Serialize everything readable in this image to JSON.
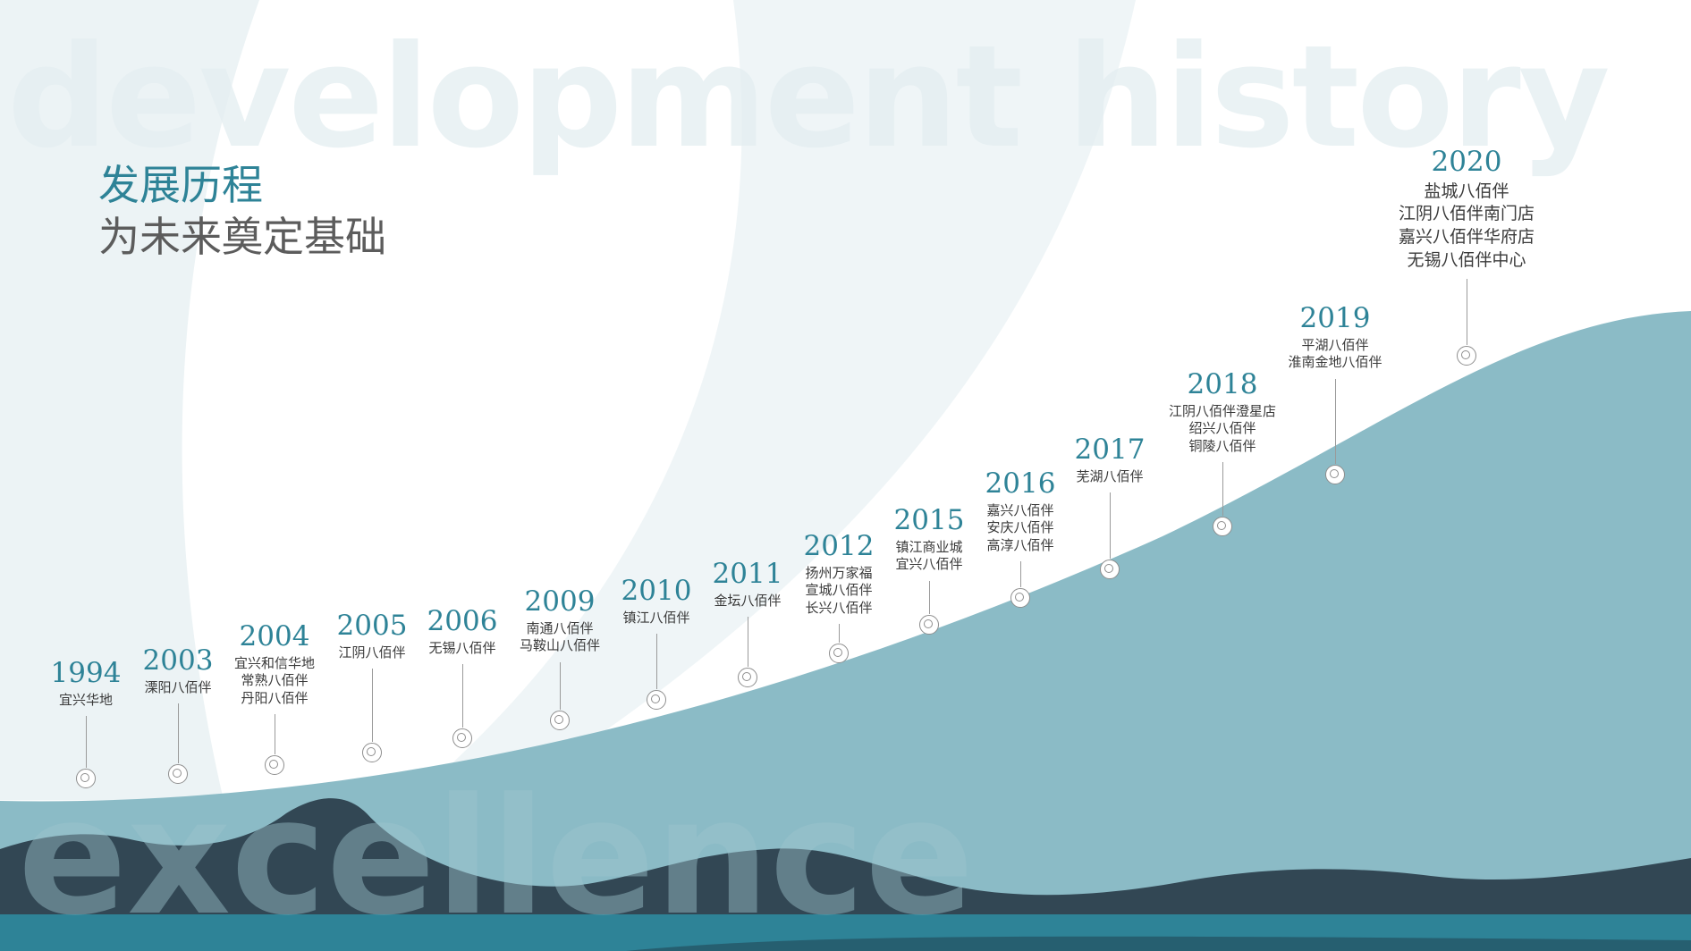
{
  "watermark": {
    "top_text": "development history",
    "bottom_text": "excellence"
  },
  "header": {
    "title": "发展历程",
    "subtitle": "为未来奠定基础"
  },
  "colors": {
    "accent": "#2e8397",
    "mountain_light": "#8bbbc6",
    "mountain_dark": "#324754",
    "water": "#2e8397",
    "text": "#3a3a3a"
  },
  "timeline": [
    {
      "year": "1994",
      "events": [
        "宜兴华地"
      ]
    },
    {
      "year": "2003",
      "events": [
        "溧阳八佰伴"
      ]
    },
    {
      "year": "2004",
      "events": [
        "宜兴和信华地",
        "常熟八佰伴",
        "丹阳八佰伴"
      ]
    },
    {
      "year": "2005",
      "events": [
        "江阴八佰伴"
      ]
    },
    {
      "year": "2006",
      "events": [
        "无锡八佰伴"
      ]
    },
    {
      "year": "2009",
      "events": [
        "南通八佰伴",
        "马鞍山八佰伴"
      ]
    },
    {
      "year": "2010",
      "events": [
        "镇江八佰伴"
      ]
    },
    {
      "year": "2011",
      "events": [
        "金坛八佰伴"
      ]
    },
    {
      "year": "2012",
      "events": [
        "扬州万家福",
        "宣城八佰伴",
        "长兴八佰伴"
      ]
    },
    {
      "year": "2015",
      "events": [
        "镇江商业城",
        "宜兴八佰伴"
      ]
    },
    {
      "year": "2016",
      "events": [
        "嘉兴八佰伴",
        "安庆八佰伴",
        "高淳八佰伴"
      ]
    },
    {
      "year": "2017",
      "events": [
        "芜湖八佰伴"
      ]
    },
    {
      "year": "2018",
      "events": [
        "江阴八佰伴澄星店",
        "绍兴八佰伴",
        "铜陵八佰伴"
      ]
    },
    {
      "year": "2019",
      "events": [
        "平湖八佰伴",
        "淮南金地八佰伴"
      ]
    },
    {
      "year": "2020",
      "events": [
        "盐城八佰伴",
        "江阴八佰伴南门店",
        "嘉兴八佰伴华府店",
        "无锡八佰伴中心"
      ]
    }
  ]
}
